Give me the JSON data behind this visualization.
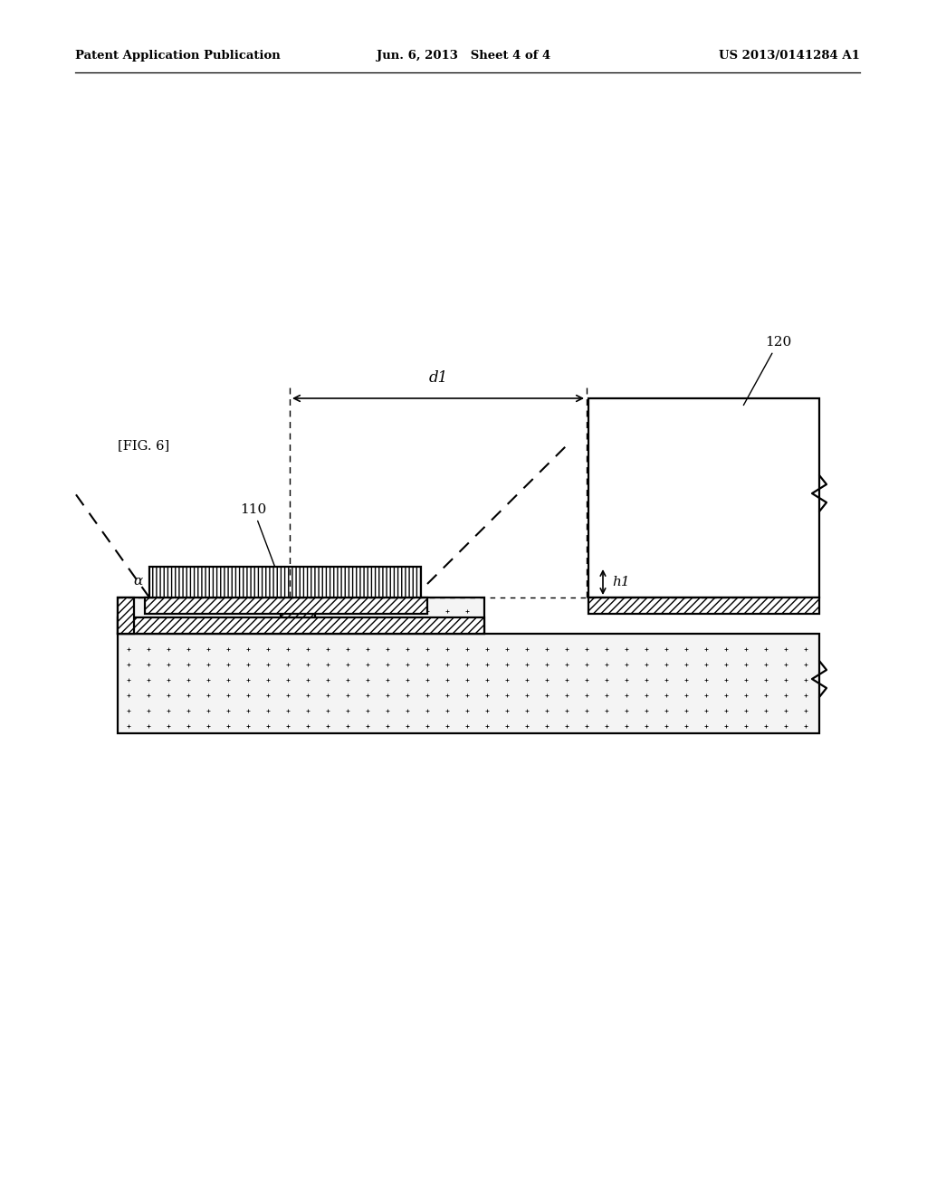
{
  "bg_color": "#ffffff",
  "header_left": "Patent Application Publication",
  "header_center": "Jun. 6, 2013   Sheet 4 of 4",
  "header_right": "US 2013/0141284 A1",
  "fig_label": "[FIG. 6]",
  "label_110": "110",
  "label_120": "120",
  "label_d1": "d1",
  "label_h1": "h1",
  "label_alpha": "α",
  "line_color": "#000000"
}
